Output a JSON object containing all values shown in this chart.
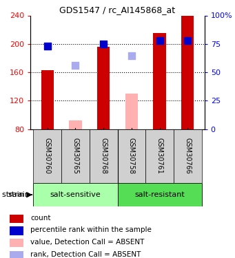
{
  "title": "GDS1547 / rc_AI145868_at",
  "samples": [
    "GSM30760",
    "GSM30765",
    "GSM30768",
    "GSM30758",
    "GSM30761",
    "GSM30766"
  ],
  "group_split": 3,
  "group_labels": [
    "salt-sensitive",
    "salt-resistant"
  ],
  "group_colors": [
    "#aaffaa",
    "#55dd55"
  ],
  "ylim_left": [
    80,
    240
  ],
  "ylim_right": [
    0,
    100
  ],
  "yticks_left": [
    80,
    120,
    160,
    200,
    240
  ],
  "yticks_right": [
    0,
    25,
    50,
    75,
    100
  ],
  "bar_values": [
    163,
    null,
    196,
    null,
    215,
    240
  ],
  "bar_absent_values": [
    null,
    92,
    null,
    130,
    null,
    null
  ],
  "bar_color": "#cc0000",
  "bar_absent_color": "#ffb0b0",
  "dot_values": [
    197,
    null,
    200,
    null,
    205,
    205
  ],
  "dot_absent_values": [
    null,
    170,
    null,
    183,
    null,
    null
  ],
  "dot_color": "#0000cc",
  "dot_absent_color": "#aaaaee",
  "dot_size": 50,
  "bar_width": 0.45,
  "sample_bg_color": "#d0d0d0",
  "legend_items": [
    {
      "label": "count",
      "color": "#cc0000"
    },
    {
      "label": "percentile rank within the sample",
      "color": "#0000cc"
    },
    {
      "label": "value, Detection Call = ABSENT",
      "color": "#ffb0b0"
    },
    {
      "label": "rank, Detection Call = ABSENT",
      "color": "#aaaaee"
    }
  ]
}
